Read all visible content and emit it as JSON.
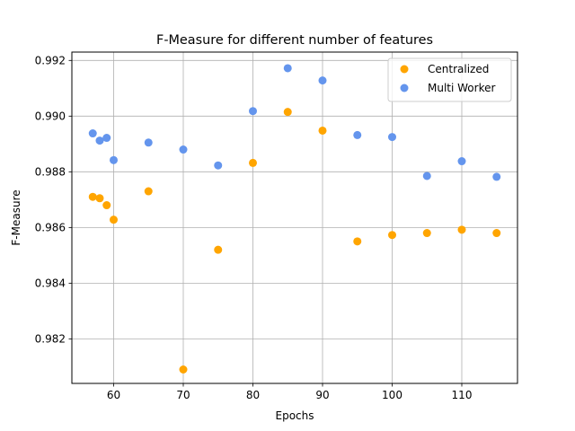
{
  "chart_data": {
    "type": "scatter",
    "title": "F-Measure for different number of features",
    "xlabel": "Epochs",
    "ylabel": "F-Measure",
    "xlim": [
      54,
      118
    ],
    "ylim": [
      0.9804,
      0.9923
    ],
    "xticks": [
      60,
      70,
      80,
      90,
      100,
      110
    ],
    "yticks": [
      0.982,
      0.984,
      0.986,
      0.988,
      0.99,
      0.992
    ],
    "ytick_labels": [
      "0.982",
      "0.984",
      "0.986",
      "0.988",
      "0.990",
      "0.992"
    ],
    "grid": true,
    "legend_position": "top-right",
    "series": [
      {
        "name": "Centralized",
        "color": "#FFA500",
        "x": [
          57,
          58,
          59,
          60,
          65,
          70,
          75,
          80,
          85,
          90,
          95,
          100,
          105,
          110,
          115
        ],
        "y": [
          0.9871,
          0.98705,
          0.9868,
          0.98628,
          0.9873,
          0.9809,
          0.9852,
          0.98832,
          0.99015,
          0.98948,
          0.9855,
          0.98573,
          0.9858,
          0.98592,
          0.9858
        ]
      },
      {
        "name": "Multi Worker",
        "color": "#6495ED",
        "x": [
          57,
          58,
          59,
          60,
          65,
          70,
          75,
          80,
          85,
          90,
          95,
          100,
          105,
          110,
          115
        ],
        "y": [
          0.98938,
          0.98912,
          0.98922,
          0.98842,
          0.98905,
          0.9888,
          0.98823,
          0.99018,
          0.99172,
          0.99128,
          0.98932,
          0.98925,
          0.98785,
          0.98838,
          0.98782
        ]
      }
    ]
  }
}
